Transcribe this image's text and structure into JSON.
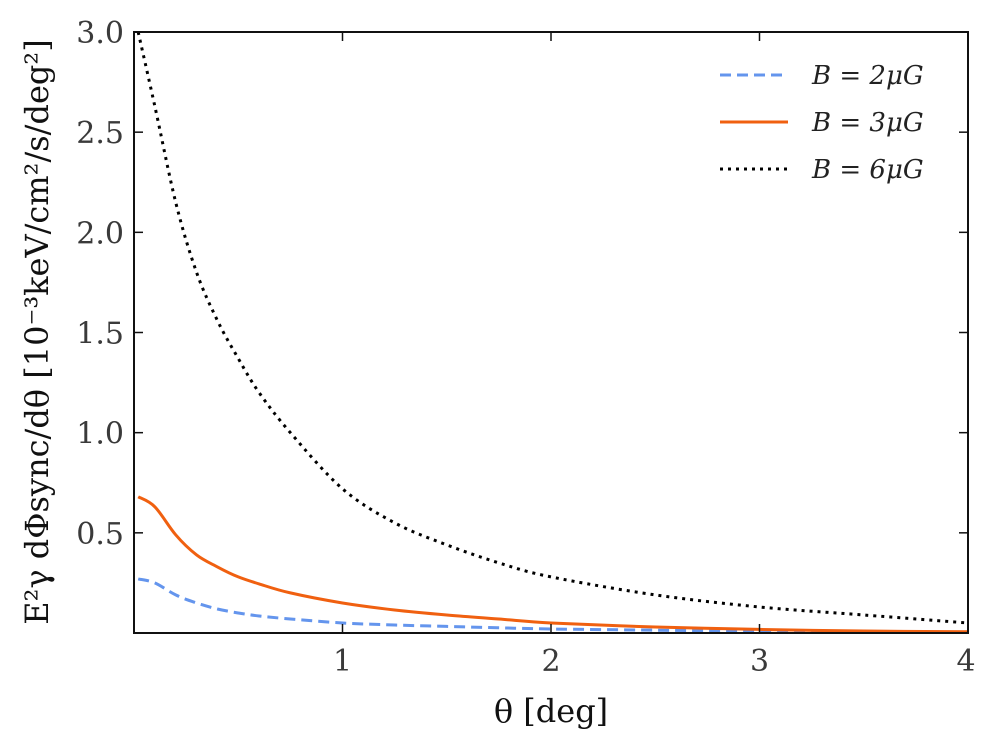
{
  "chart_data": {
    "type": "line",
    "xlabel": "θ [deg]",
    "ylabel": "E²γ dΦsync/dθ [10⁻³keV/cm²/s/deg²]",
    "xlim": [
      0.02,
      4
    ],
    "ylim": [
      0,
      3.0
    ],
    "xticks": [
      1,
      2,
      3,
      4
    ],
    "yticks": [
      0.5,
      1.0,
      1.5,
      2.0,
      2.5,
      3.0
    ],
    "xtick_labels": [
      "1",
      "2",
      "3",
      "4"
    ],
    "ytick_labels": [
      "0.5",
      "1.0",
      "1.5",
      "2.0",
      "2.5",
      "3.0"
    ],
    "grid": false,
    "legend": "top-right",
    "x": [
      0.02,
      0.1,
      0.2,
      0.3,
      0.4,
      0.5,
      0.6,
      0.75,
      1.0,
      1.25,
      1.5,
      1.75,
      2.0,
      2.5,
      3.0,
      3.5,
      4.0
    ],
    "series": [
      {
        "name": "B = 2μG",
        "color": "#6495ED",
        "style": "dashed",
        "values": [
          0.27,
          0.25,
          0.19,
          0.15,
          0.12,
          0.1,
          0.085,
          0.07,
          0.05,
          0.04,
          0.033,
          0.026,
          0.02,
          0.014,
          0.009,
          0.006,
          0.004
        ]
      },
      {
        "name": "B = 3μG",
        "color": "#F06010",
        "style": "solid",
        "values": [
          0.68,
          0.63,
          0.49,
          0.39,
          0.33,
          0.28,
          0.245,
          0.2,
          0.15,
          0.115,
          0.09,
          0.07,
          0.05,
          0.03,
          0.018,
          0.01,
          0.006
        ]
      },
      {
        "name": "B = 6μG",
        "color": "#000000",
        "style": "dotted",
        "values": [
          3.0,
          2.63,
          2.15,
          1.8,
          1.56,
          1.37,
          1.2,
          1.0,
          0.72,
          0.55,
          0.44,
          0.35,
          0.28,
          0.19,
          0.13,
          0.09,
          0.05
        ]
      }
    ]
  }
}
